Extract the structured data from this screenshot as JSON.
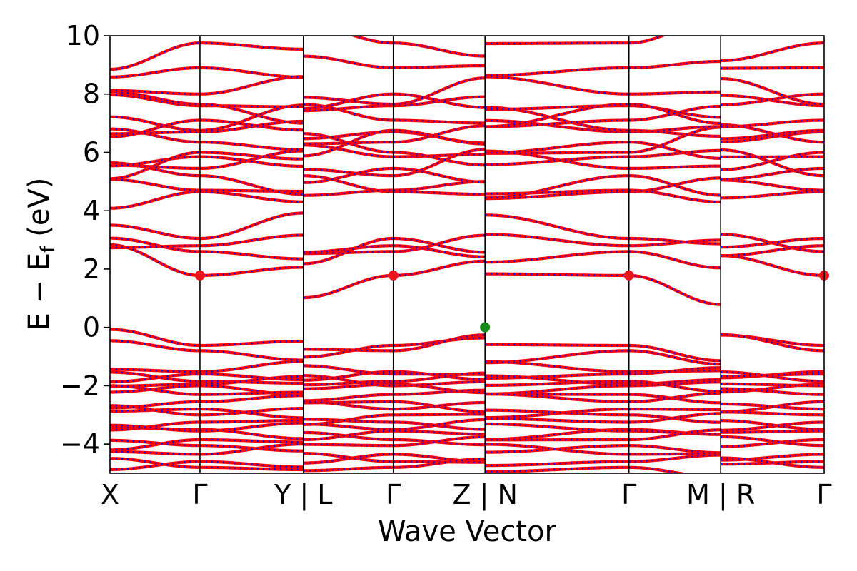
{
  "chart_data": {
    "type": "line",
    "title": "",
    "xlabel": "Wave Vector",
    "ylabel": "E − E_f (eV)",
    "ylabel_main": "E − E",
    "ylabel_sub": "f",
    "ylabel_tail": " (eV)",
    "ylim": [
      -5,
      10
    ],
    "yticks": [
      -4,
      -2,
      0,
      2,
      4,
      6,
      8,
      10
    ],
    "grid": false,
    "legend": "none",
    "colors": {
      "band_primary": "#ff0000",
      "band_overlay": "#0000ff",
      "cbm_marker": "#e8161c",
      "vbm_marker": "#1a8a1a",
      "kpath_line": "#000000"
    },
    "kpath": {
      "segments": [
        {
          "points": [
            "X",
            "Γ",
            "Y"
          ],
          "length": [
            1.0,
            1.15
          ]
        },
        {
          "points": [
            "L",
            "Γ",
            "Z"
          ],
          "length": [
            1.0,
            1.02
          ]
        },
        {
          "points": [
            "N",
            "Γ",
            "M"
          ],
          "length": [
            1.6,
            1.02
          ]
        },
        {
          "points": [
            "R",
            "Γ"
          ],
          "length": [
            1.15
          ]
        }
      ],
      "tick_labels": [
        "X",
        "Γ",
        "Y | L",
        "Γ",
        "Z | N",
        "Γ",
        "M | R",
        "Γ"
      ]
    },
    "markers": [
      {
        "type": "CBM",
        "kpoint": "Γ",
        "energy": 1.78,
        "occurrences": 4
      },
      {
        "type": "VBM",
        "kpoint": "Z | N",
        "energy": 0.0
      }
    ],
    "valence_bands_gamma": [
      -0.62,
      -0.8,
      -1.52,
      -1.6,
      -1.85,
      -1.95,
      -2.0,
      -2.3,
      -2.55,
      -2.8,
      -3.0,
      -3.25,
      -3.5,
      -3.55,
      -3.85,
      -4.05,
      -4.35,
      -4.6,
      -4.8
    ],
    "conduction_bands_gamma": [
      1.78,
      2.6,
      2.8,
      3.05,
      4.65,
      4.7,
      5.2,
      5.45,
      5.85,
      6.0,
      6.35,
      6.7,
      6.75,
      7.1,
      7.6,
      7.65,
      8.0,
      8.9,
      9.75
    ]
  }
}
